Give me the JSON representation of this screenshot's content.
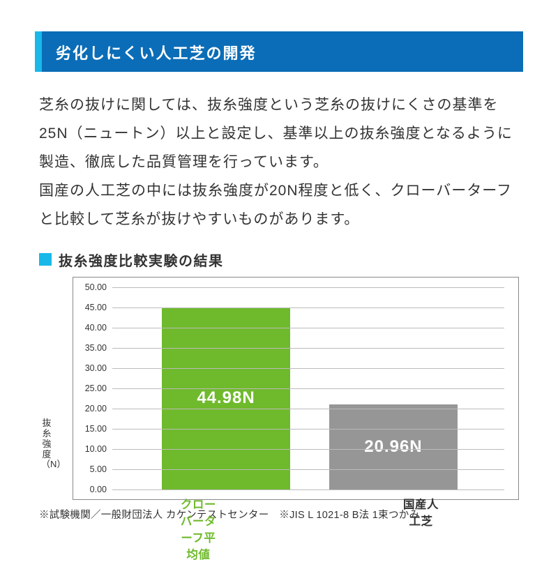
{
  "header": {
    "title": "劣化しにくい人工芝の開発",
    "bar_color": "#0b6db7",
    "accent_color": "#19b8e9",
    "title_fontsize": 22
  },
  "body": {
    "text": "芝糸の抜けに関しては、抜糸強度という芝糸の抜けにくさの基準を25N（ニュートン）以上と設定し、基準以上の抜糸強度となるように製造、徹底した品質管理を行っています。\n国産の人工芝の中には抜糸強度が20N程度と低く、クローバーターフと比較して芝糸が抜けやすいものがあります。",
    "fontsize": 21,
    "line_height": 1.95,
    "color": "#333333"
  },
  "subhead": {
    "marker_color": "#19b8e9",
    "text": "抜糸強度比較実験の結果",
    "fontsize": 20
  },
  "chart": {
    "type": "bar",
    "ylabel": "抜糸強度（N）",
    "ylim": [
      0,
      50
    ],
    "ytick_step": 5,
    "ytick_labels": [
      "0.00",
      "5.00",
      "10.00",
      "15.00",
      "20.00",
      "25.00",
      "30.00",
      "35.00",
      "40.00",
      "45.00",
      "50.00"
    ],
    "grid_color": "#bbbbbb",
    "border_color": "#888888",
    "background_color": "#ffffff",
    "tick_fontsize": 12.5,
    "bars": [
      {
        "category": "クローバーターフ平均値",
        "value": 44.98,
        "value_label": "44.98N",
        "color": "#6fba2c",
        "category_color": "#6fba2c"
      },
      {
        "category": "国産人工芝",
        "value": 20.96,
        "value_label": "20.96N",
        "color": "#969696",
        "category_color": "#333333"
      }
    ],
    "bar_width_pct": 33,
    "bar_positions_pct": [
      12,
      55
    ],
    "value_label_fontsize": 24,
    "category_fontsize": 16.5
  },
  "footnote": {
    "text": "※試験機関／一般財団法人 カケンテストセンター　※JIS L 1021-8 B法 1束つかみ",
    "fontsize": 14.5,
    "color": "#333333"
  }
}
